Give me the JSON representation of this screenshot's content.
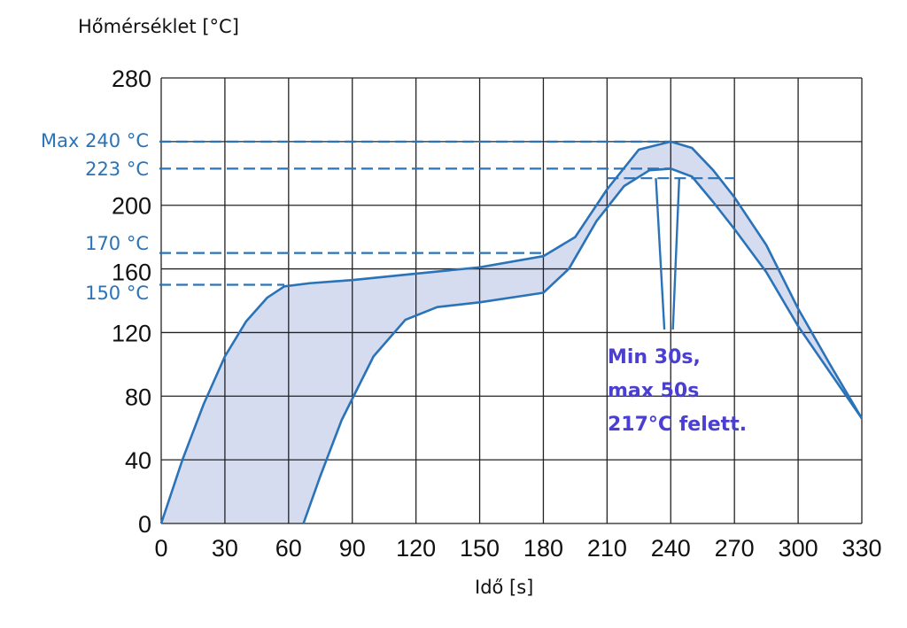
{
  "chart_data": {
    "type": "area",
    "ylabel": "Hőmérséklet [°C]",
    "xlabel": "Idő [s]",
    "xlim": [
      0,
      330
    ],
    "ylim": [
      0,
      280
    ],
    "x_ticks": [
      0,
      30,
      60,
      90,
      120,
      150,
      180,
      210,
      240,
      270,
      300,
      330
    ],
    "y_ticks": [
      0,
      40,
      80,
      120,
      160,
      200,
      240,
      280
    ],
    "y_tick_labels": [
      "0",
      "40",
      "80",
      "120",
      "",
      "200",
      "",
      "280"
    ],
    "grid": true,
    "series": [
      {
        "values": [
          [
            0,
            0
          ],
          [
            10,
            40
          ],
          [
            20,
            75
          ],
          [
            30,
            105
          ],
          [
            40,
            127
          ],
          [
            50,
            142
          ],
          [
            58,
            149
          ],
          [
            70,
            151
          ],
          [
            90,
            153
          ],
          [
            120,
            157
          ],
          [
            150,
            161
          ],
          [
            180,
            168
          ],
          [
            195,
            180
          ],
          [
            210,
            210
          ],
          [
            225,
            235
          ],
          [
            240,
            240
          ],
          [
            250,
            236
          ],
          [
            260,
            222
          ],
          [
            270,
            205
          ],
          [
            285,
            175
          ],
          [
            300,
            135
          ],
          [
            315,
            100
          ],
          [
            330,
            66
          ]
        ]
      },
      {
        "values": [
          [
            67,
            0
          ],
          [
            75,
            30
          ],
          [
            85,
            65
          ],
          [
            100,
            105
          ],
          [
            115,
            128
          ],
          [
            130,
            136
          ],
          [
            150,
            139
          ],
          [
            170,
            143
          ],
          [
            180,
            145
          ],
          [
            192,
            160
          ],
          [
            205,
            190
          ],
          [
            218,
            212
          ],
          [
            230,
            222
          ],
          [
            240,
            223
          ],
          [
            250,
            218
          ],
          [
            260,
            202
          ],
          [
            270,
            185
          ],
          [
            285,
            158
          ],
          [
            300,
            124
          ],
          [
            315,
            95
          ],
          [
            330,
            66
          ]
        ]
      }
    ],
    "reference_lines": [
      {
        "label": "Max 240 °C",
        "y": 240,
        "x_end": 240
      },
      {
        "label": "223 °C",
        "y": 223,
        "x_end": 240
      },
      {
        "label": "170 °C",
        "y": 170,
        "x_end": 180
      },
      {
        "label": "150 °C",
        "y": 150,
        "x_end": 58
      },
      {
        "label": "",
        "y": 217,
        "x_start": 210,
        "x_end": 270
      }
    ],
    "annotation": {
      "lines": [
        "Min 30s,",
        "max 50s",
        "217°C felett."
      ],
      "color": "#4b3fd1"
    },
    "colors": {
      "curve": "#2a73b8",
      "fill": "#d6dcef",
      "label": "#2a73b8",
      "grid": "#222222"
    }
  }
}
